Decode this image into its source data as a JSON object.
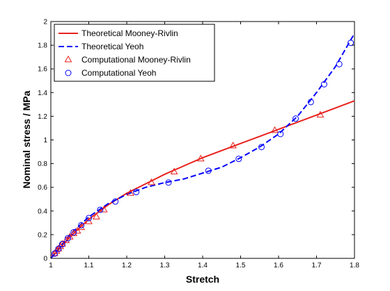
{
  "chart_data": {
    "type": "line",
    "title": "",
    "xlabel": "Stretch",
    "ylabel": "Nominal stress / MPa",
    "xlim": [
      1,
      1.8
    ],
    "ylim": [
      0,
      2
    ],
    "xticks": [
      "1",
      "1.1",
      "1.2",
      "1.3",
      "1.4",
      "1.5",
      "1.6",
      "1.7",
      "1.8"
    ],
    "yticks": [
      "0",
      "0.2",
      "0.4",
      "0.6",
      "0.8",
      "1",
      "1.2",
      "1.4",
      "1.6",
      "1.8",
      "2"
    ],
    "grid": false,
    "legend_position": "top-left",
    "series": [
      {
        "name": "Theoretical Mooney-Rivlin",
        "style": "solid-line",
        "color": "#e8211d",
        "x": [
          1.0,
          1.05,
          1.1,
          1.15,
          1.2,
          1.25,
          1.3,
          1.35,
          1.4,
          1.45,
          1.5,
          1.55,
          1.6,
          1.65,
          1.7,
          1.75,
          1.8
        ],
        "y": [
          0.0,
          0.18,
          0.33,
          0.45,
          0.55,
          0.63,
          0.71,
          0.78,
          0.85,
          0.91,
          0.97,
          1.03,
          1.09,
          1.15,
          1.21,
          1.27,
          1.33
        ]
      },
      {
        "name": "Theoretical Yeoh",
        "style": "dashed-line",
        "color": "#0000ff",
        "x": [
          1.0,
          1.05,
          1.1,
          1.15,
          1.2,
          1.25,
          1.3,
          1.35,
          1.4,
          1.45,
          1.5,
          1.55,
          1.6,
          1.65,
          1.7,
          1.75,
          1.8
        ],
        "y": [
          0.0,
          0.2,
          0.35,
          0.46,
          0.54,
          0.6,
          0.64,
          0.67,
          0.72,
          0.77,
          0.85,
          0.94,
          1.05,
          1.2,
          1.4,
          1.62,
          1.9
        ]
      },
      {
        "name": "Computational Mooney-Rivlin",
        "style": "triangle-markers",
        "color": "#e8211d",
        "x": [
          1.01,
          1.015,
          1.02,
          1.025,
          1.03,
          1.04,
          1.05,
          1.06,
          1.07,
          1.08,
          1.1,
          1.12,
          1.14,
          1.21,
          1.265,
          1.325,
          1.395,
          1.48,
          1.59,
          1.71
        ],
        "y": [
          0.04,
          0.06,
          0.08,
          0.1,
          0.12,
          0.15,
          0.18,
          0.21,
          0.23,
          0.26,
          0.31,
          0.35,
          0.41,
          0.55,
          0.64,
          0.73,
          0.84,
          0.95,
          1.08,
          1.21
        ]
      },
      {
        "name": "Computational Yeoh",
        "style": "circle-markers",
        "color": "#0000ff",
        "x": [
          1.01,
          1.02,
          1.03,
          1.045,
          1.06,
          1.08,
          1.1,
          1.13,
          1.17,
          1.225,
          1.31,
          1.415,
          1.495,
          1.555,
          1.605,
          1.645,
          1.685,
          1.72,
          1.76,
          1.79
        ],
        "y": [
          0.04,
          0.08,
          0.12,
          0.17,
          0.22,
          0.28,
          0.34,
          0.41,
          0.48,
          0.56,
          0.64,
          0.74,
          0.84,
          0.94,
          1.05,
          1.18,
          1.32,
          1.47,
          1.64,
          1.82
        ]
      }
    ]
  }
}
